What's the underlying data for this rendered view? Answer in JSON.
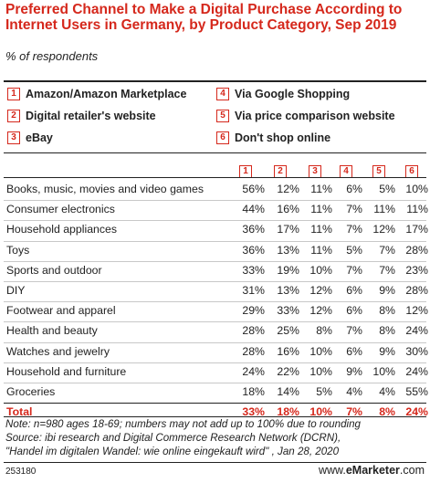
{
  "title": "Preferred Channel to Make a Digital Purchase According to Internet Users in Germany, by Product Category, Sep 2019",
  "subtitle": "% of respondents",
  "legend": [
    {
      "num": "1",
      "label": "Amazon/Amazon Marketplace"
    },
    {
      "num": "2",
      "label": "Digital retailer's website"
    },
    {
      "num": "3",
      "label": "eBay"
    },
    {
      "num": "4",
      "label": "Via Google Shopping"
    },
    {
      "num": "5",
      "label": "Via price comparison website"
    },
    {
      "num": "6",
      "label": "Don't shop online"
    }
  ],
  "columns": [
    "1",
    "2",
    "3",
    "4",
    "5",
    "6"
  ],
  "rows": [
    {
      "label": "Books, music, movies and video games",
      "values": [
        "56%",
        "12%",
        "11%",
        "6%",
        "5%",
        "10%"
      ]
    },
    {
      "label": "Consumer electronics",
      "values": [
        "44%",
        "16%",
        "11%",
        "7%",
        "11%",
        "11%"
      ]
    },
    {
      "label": "Household appliances",
      "values": [
        "36%",
        "17%",
        "11%",
        "7%",
        "12%",
        "17%"
      ]
    },
    {
      "label": "Toys",
      "values": [
        "36%",
        "13%",
        "11%",
        "5%",
        "7%",
        "28%"
      ]
    },
    {
      "label": "Sports and outdoor",
      "values": [
        "33%",
        "19%",
        "10%",
        "7%",
        "7%",
        "23%"
      ]
    },
    {
      "label": "DIY",
      "values": [
        "31%",
        "13%",
        "12%",
        "6%",
        "9%",
        "28%"
      ]
    },
    {
      "label": "Footwear and apparel",
      "values": [
        "29%",
        "33%",
        "12%",
        "6%",
        "8%",
        "12%"
      ]
    },
    {
      "label": "Health and beauty",
      "values": [
        "28%",
        "25%",
        "8%",
        "7%",
        "8%",
        "24%"
      ]
    },
    {
      "label": "Watches and jewelry",
      "values": [
        "28%",
        "16%",
        "10%",
        "6%",
        "9%",
        "30%"
      ]
    },
    {
      "label": "Household and furniture",
      "values": [
        "24%",
        "22%",
        "10%",
        "9%",
        "10%",
        "24%"
      ]
    },
    {
      "label": "Groceries",
      "values": [
        "18%",
        "14%",
        "5%",
        "4%",
        "4%",
        "55%"
      ]
    }
  ],
  "total": {
    "label": "Total",
    "values": [
      "33%",
      "18%",
      "10%",
      "7%",
      "8%",
      "24%"
    ]
  },
  "notes": [
    "Note: n=980 ages 18-69; numbers may not add up to 100% due to rounding",
    "Source: ibi research and Digital Commerce Research Network (DCRN),",
    "\"Handel im digitalen Wandel: wie online eingekauft wird\" , Jan 28, 2020"
  ],
  "chart_id": "253180",
  "brand": {
    "prefix": "www.",
    "name": "eMarketer",
    "suffix": ".com"
  },
  "colors": {
    "accent": "#d5281c",
    "text": "#222222",
    "separator": "#c8c8c8"
  },
  "chart_data": {
    "type": "table",
    "title": "Preferred Channel to Make a Digital Purchase According to Internet Users in Germany, by Product Category, Sep 2019",
    "subtitle": "% of respondents",
    "columns": [
      "Amazon/Amazon Marketplace",
      "Digital retailer's website",
      "eBay",
      "Via Google Shopping",
      "Via price comparison website",
      "Don't shop online"
    ],
    "categories": [
      "Books, music, movies and video games",
      "Consumer electronics",
      "Household appliances",
      "Toys",
      "Sports and outdoor",
      "DIY",
      "Footwear and apparel",
      "Health and beauty",
      "Watches and jewelry",
      "Household and furniture",
      "Groceries",
      "Total"
    ],
    "values": [
      [
        56,
        12,
        11,
        6,
        5,
        10
      ],
      [
        44,
        16,
        11,
        7,
        11,
        11
      ],
      [
        36,
        17,
        11,
        7,
        12,
        17
      ],
      [
        36,
        13,
        11,
        5,
        7,
        28
      ],
      [
        33,
        19,
        10,
        7,
        7,
        23
      ],
      [
        31,
        13,
        12,
        6,
        9,
        28
      ],
      [
        29,
        33,
        12,
        6,
        8,
        12
      ],
      [
        28,
        25,
        8,
        7,
        8,
        24
      ],
      [
        28,
        16,
        10,
        6,
        9,
        30
      ],
      [
        24,
        22,
        10,
        9,
        10,
        24
      ],
      [
        18,
        14,
        5,
        4,
        4,
        55
      ],
      [
        33,
        18,
        10,
        7,
        8,
        24
      ]
    ]
  }
}
